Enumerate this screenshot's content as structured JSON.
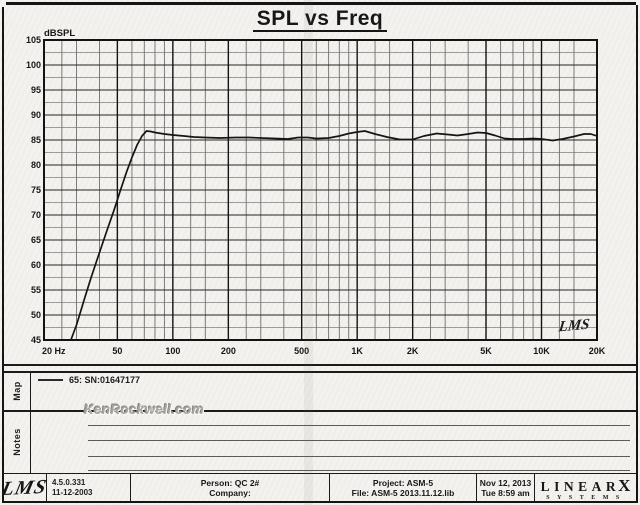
{
  "page": {
    "title": "SPL vs Freq"
  },
  "chart": {
    "signature": "LMS"
  },
  "chart_data": {
    "type": "line",
    "title": "SPL vs Freq",
    "ylabel": "dBSPL",
    "x_scale": "log",
    "xlim": [
      20,
      20000
    ],
    "ylim": [
      45,
      105
    ],
    "y_major_step": 5,
    "y_minor_step": 2.5,
    "grid": true,
    "y_tick_labels": [
      "105",
      "100",
      "95",
      "90",
      "85",
      "80",
      "75",
      "70",
      "65",
      "60",
      "55",
      "50",
      "45"
    ],
    "x_ticks": [
      {
        "f": 20,
        "label": "20 Hz"
      },
      {
        "f": 50,
        "label": "50"
      },
      {
        "f": 100,
        "label": "100"
      },
      {
        "f": 200,
        "label": "200"
      },
      {
        "f": 500,
        "label": "500"
      },
      {
        "f": 1000,
        "label": "1K"
      },
      {
        "f": 2000,
        "label": "2K"
      },
      {
        "f": 5000,
        "label": "5K"
      },
      {
        "f": 10000,
        "label": "10K"
      },
      {
        "f": 20000,
        "label": "20K"
      }
    ],
    "x_minor_multipliers": [
      1.25,
      1.5,
      2.5,
      3,
      4,
      6,
      7,
      8,
      9
    ],
    "legend_position": "map-panel-below-chart",
    "series": [
      {
        "name": "65: SN:01647177",
        "points": [
          [
            28,
            45
          ],
          [
            30,
            48
          ],
          [
            33,
            53
          ],
          [
            36,
            57.5
          ],
          [
            40,
            62.5
          ],
          [
            44,
            67
          ],
          [
            48,
            71
          ],
          [
            52,
            75
          ],
          [
            56,
            78.5
          ],
          [
            60,
            81.5
          ],
          [
            64,
            84
          ],
          [
            68,
            85.8
          ],
          [
            72,
            86.8
          ],
          [
            76,
            86.7
          ],
          [
            80,
            86.5
          ],
          [
            90,
            86.2
          ],
          [
            100,
            86.0
          ],
          [
            115,
            85.8
          ],
          [
            130,
            85.6
          ],
          [
            150,
            85.5
          ],
          [
            180,
            85.4
          ],
          [
            220,
            85.5
          ],
          [
            260,
            85.5
          ],
          [
            300,
            85.4
          ],
          [
            360,
            85.3
          ],
          [
            420,
            85.2
          ],
          [
            480,
            85.5
          ],
          [
            540,
            85.5
          ],
          [
            600,
            85.3
          ],
          [
            700,
            85.4
          ],
          [
            800,
            85.8
          ],
          [
            900,
            86.3
          ],
          [
            1000,
            86.6
          ],
          [
            1100,
            86.8
          ],
          [
            1250,
            86.2
          ],
          [
            1450,
            85.6
          ],
          [
            1700,
            85.1
          ],
          [
            2000,
            85.1
          ],
          [
            2300,
            85.8
          ],
          [
            2700,
            86.3
          ],
          [
            3100,
            86.1
          ],
          [
            3500,
            85.9
          ],
          [
            4000,
            86.2
          ],
          [
            4500,
            86.5
          ],
          [
            5000,
            86.4
          ],
          [
            5600,
            85.9
          ],
          [
            6300,
            85.3
          ],
          [
            7000,
            85.2
          ],
          [
            8000,
            85.2
          ],
          [
            9000,
            85.3
          ],
          [
            10000,
            85.2
          ],
          [
            11500,
            84.9
          ],
          [
            13000,
            85.2
          ],
          [
            15000,
            85.7
          ],
          [
            17000,
            86.2
          ],
          [
            18500,
            86.2
          ],
          [
            20000,
            85.8
          ]
        ]
      }
    ]
  },
  "map_panel": {
    "label": "Map",
    "legend_label": "65: SN:01647177"
  },
  "notes_panel": {
    "label": "Notes"
  },
  "watermark": "KenRockwell.com",
  "footer": {
    "lms_logo": "LMS",
    "version": "4.5.0.331",
    "version_date": "11-12-2003",
    "person": "Person: QC 2#",
    "company": "Company:",
    "project": "Project: ASM-5",
    "file": "File: ASM-5 2013.11.12.lib",
    "date": "Nov 12, 2013",
    "time": "Tue 8:59 am",
    "brand": {
      "name_main": "LINEAR",
      "name_x": "X",
      "subtitle": "SYSTEMS"
    }
  }
}
